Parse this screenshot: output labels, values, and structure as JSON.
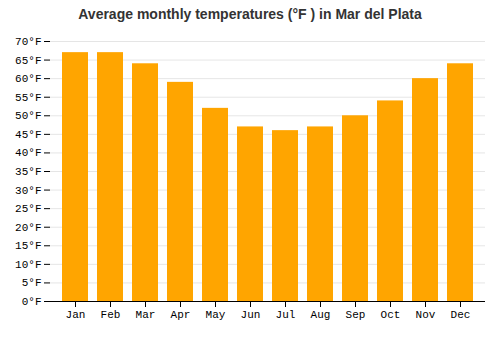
{
  "chart_data": {
    "type": "bar",
    "title": "Average monthly temperatures (°F ) in Mar del Plata",
    "categories": [
      "Jan",
      "Feb",
      "Mar",
      "Apr",
      "May",
      "Jun",
      "Jul",
      "Aug",
      "Sep",
      "Oct",
      "Nov",
      "Dec"
    ],
    "values": [
      67,
      67,
      64,
      59,
      52,
      47,
      46,
      47,
      50,
      54,
      60,
      64
    ],
    "color": "#FFA500",
    "ylim": [
      0,
      70
    ],
    "yticks": [
      {
        "value": 0,
        "label": "0°F"
      },
      {
        "value": 5,
        "label": "5°F"
      },
      {
        "value": 10,
        "label": "10°F"
      },
      {
        "value": 15,
        "label": "15°F"
      },
      {
        "value": 20,
        "label": "20°F"
      },
      {
        "value": 25,
        "label": "25°F"
      },
      {
        "value": 30,
        "label": "30°F"
      },
      {
        "value": 35,
        "label": "35°F"
      },
      {
        "value": 40,
        "label": "40°F"
      },
      {
        "value": 45,
        "label": "45°F"
      },
      {
        "value": 50,
        "label": "50°F"
      },
      {
        "value": 55,
        "label": "55°F"
      },
      {
        "value": 60,
        "label": "60°F"
      },
      {
        "value": 65,
        "label": "65°F"
      },
      {
        "value": 70,
        "label": "70°F"
      }
    ],
    "grid": true
  }
}
